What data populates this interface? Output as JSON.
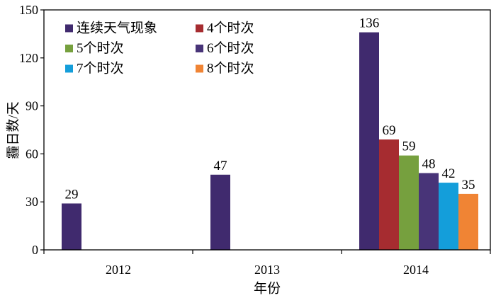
{
  "chart_data": {
    "type": "bar",
    "categories": [
      "2012",
      "2013",
      "2014"
    ],
    "series": [
      {
        "name": "连续天气现象",
        "color": "#402A6E",
        "values": [
          29,
          47,
          136
        ]
      },
      {
        "name": "4个时次",
        "color": "#A62C30",
        "values": [
          null,
          null,
          69
        ]
      },
      {
        "name": "5个时次",
        "color": "#76A03E",
        "values": [
          null,
          null,
          59
        ]
      },
      {
        "name": "6个时次",
        "color": "#483478",
        "values": [
          null,
          null,
          48
        ]
      },
      {
        "name": "7个时次",
        "color": "#149EDA",
        "values": [
          null,
          null,
          42
        ]
      },
      {
        "name": "8个时次",
        "color": "#F08434",
        "values": [
          null,
          null,
          35
        ]
      }
    ],
    "xlabel": "年份",
    "ylabel": "霾日数/天",
    "ylim": [
      0,
      150
    ],
    "yticks": [
      0,
      30,
      60,
      90,
      120,
      150
    ],
    "grid": false,
    "legend": "top-left",
    "data_labels": true
  }
}
